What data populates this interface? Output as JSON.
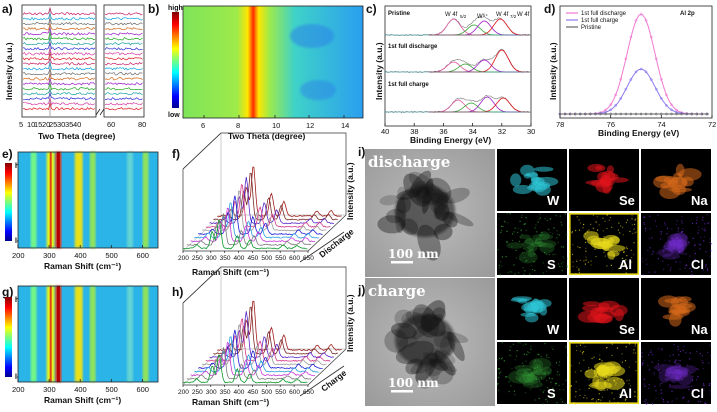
{
  "panels": {
    "a": {
      "letter": "a)",
      "ylabel": "Intensity (a.u.)",
      "xlabel": "Two Theta (degree)",
      "ticks": [
        "5",
        "10",
        "15",
        "20",
        "25",
        "30",
        "35",
        "40",
        "60",
        "80"
      ]
    },
    "b": {
      "letter": "b)",
      "cbar_high": "high",
      "cbar_low": "low",
      "xlabel": "Two Theta (degree)",
      "ticks": [
        "6",
        "8",
        "10",
        "12",
        "14"
      ]
    },
    "c": {
      "letter": "c)",
      "ylabel": "Intensity (a.u.)",
      "xlabel": "Binding Energy (eV)",
      "ticks": [
        "40",
        "38",
        "36",
        "34",
        "32",
        "30"
      ],
      "states": [
        "Pristine",
        "1st full discharge",
        "1st full charge"
      ],
      "peaks": [
        "W 4f",
        "5/2",
        "W⁶⁺",
        "W 4f",
        "7/2",
        "W 4f"
      ]
    },
    "d": {
      "letter": "d)",
      "ylabel": "Intensity (a.u.)",
      "xlabel": "Binding Energy (eV)",
      "ticks": [
        "78",
        "76",
        "74",
        "72"
      ],
      "title": "Al 2p",
      "legend": [
        "1st full discharge",
        "1st full charge",
        "Pristine"
      ]
    },
    "e": {
      "letter": "e)",
      "cbar_high": "high",
      "cbar_low": "low",
      "xlabel": "Raman Shift (cm⁻¹)",
      "ticks": [
        "200",
        "300",
        "400",
        "500",
        "600"
      ]
    },
    "f": {
      "letter": "f)",
      "xlabel": "Raman Shift (cm⁻¹)",
      "ylabel": "Intensity (a.u.)",
      "ticks": [
        "200",
        "250",
        "300",
        "350",
        "400",
        "450",
        "500",
        "550",
        "600",
        "650"
      ],
      "arrow": "Discharge"
    },
    "g": {
      "letter": "g)",
      "cbar_high": "high",
      "cbar_low": "low",
      "xlabel": "Raman Shift (cm⁻¹)",
      "ticks": [
        "200",
        "300",
        "400",
        "500",
        "600"
      ]
    },
    "h": {
      "letter": "h)",
      "xlabel": "Raman Shift (cm⁻¹)",
      "ylabel": "Intensity (a.u.)",
      "ticks": [
        "200",
        "250",
        "300",
        "350",
        "400",
        "450",
        "500",
        "550",
        "600",
        "650"
      ],
      "arrow": "Charge"
    },
    "i": {
      "letter": "i)",
      "state": "discharge",
      "scale": "100 nm",
      "elements": [
        "W",
        "Se",
        "Na",
        "S",
        "Al",
        "Cl"
      ]
    },
    "j": {
      "letter": "j)",
      "state": "charge",
      "scale": "100 nm",
      "elements": [
        "W",
        "Se",
        "Na",
        "S",
        "Al",
        "Cl"
      ]
    }
  },
  "colors": {
    "W": "#2ec4d6",
    "Se": "#e0141c",
    "Na": "#d4681a",
    "S": "#38a83a",
    "Al": "#e8d81c",
    "Cl": "#7a2ee0"
  },
  "chart_data": [
    {
      "type": "line",
      "panel": "a",
      "title": "",
      "xlabel": "Two Theta (degree)",
      "ylabel": "Intensity (a.u.)",
      "xlim": [
        5,
        80
      ],
      "series_count": 20,
      "axis_break": [
        38,
        42
      ]
    },
    {
      "type": "heatmap",
      "panel": "b",
      "xlabel": "Two Theta (degree)",
      "xlim": [
        5,
        15
      ],
      "peak_x": 8.8
    },
    {
      "type": "line",
      "panel": "c",
      "xlabel": "Binding Energy (eV)",
      "xlim": [
        40,
        30
      ],
      "states": [
        "Pristine",
        "1st full discharge",
        "1st full charge"
      ]
    },
    {
      "type": "line",
      "panel": "d",
      "title": "Al 2p",
      "xlabel": "Binding Energy (eV)",
      "xlim": [
        78,
        72
      ],
      "series": [
        {
          "name": "1st full discharge",
          "peak": 74.8,
          "height": 1.0
        },
        {
          "name": "1st full charge",
          "peak": 74.8,
          "height": 0.45
        },
        {
          "name": "Pristine",
          "peak": 74.8,
          "height": 0.0
        }
      ]
    },
    {
      "type": "heatmap",
      "panel": "e",
      "xlabel": "Raman Shift (cm⁻¹)",
      "xlim": [
        200,
        650
      ],
      "bands": [
        250,
        305,
        330,
        395,
        440,
        560,
        610
      ]
    },
    {
      "type": "line",
      "panel": "f",
      "xlabel": "Raman Shift (cm⁻¹)",
      "xlim": [
        200,
        650
      ],
      "series_count": 10,
      "peaks": [
        305,
        330,
        395,
        440
      ]
    },
    {
      "type": "heatmap",
      "panel": "g",
      "xlabel": "Raman Shift (cm⁻¹)",
      "xlim": [
        200,
        650
      ],
      "bands": [
        250,
        305,
        330,
        395,
        440,
        560,
        610
      ]
    },
    {
      "type": "line",
      "panel": "h",
      "xlabel": "Raman Shift (cm⁻¹)",
      "xlim": [
        200,
        650
      ],
      "series_count": 10,
      "peaks": [
        305,
        330,
        395,
        440
      ]
    }
  ]
}
